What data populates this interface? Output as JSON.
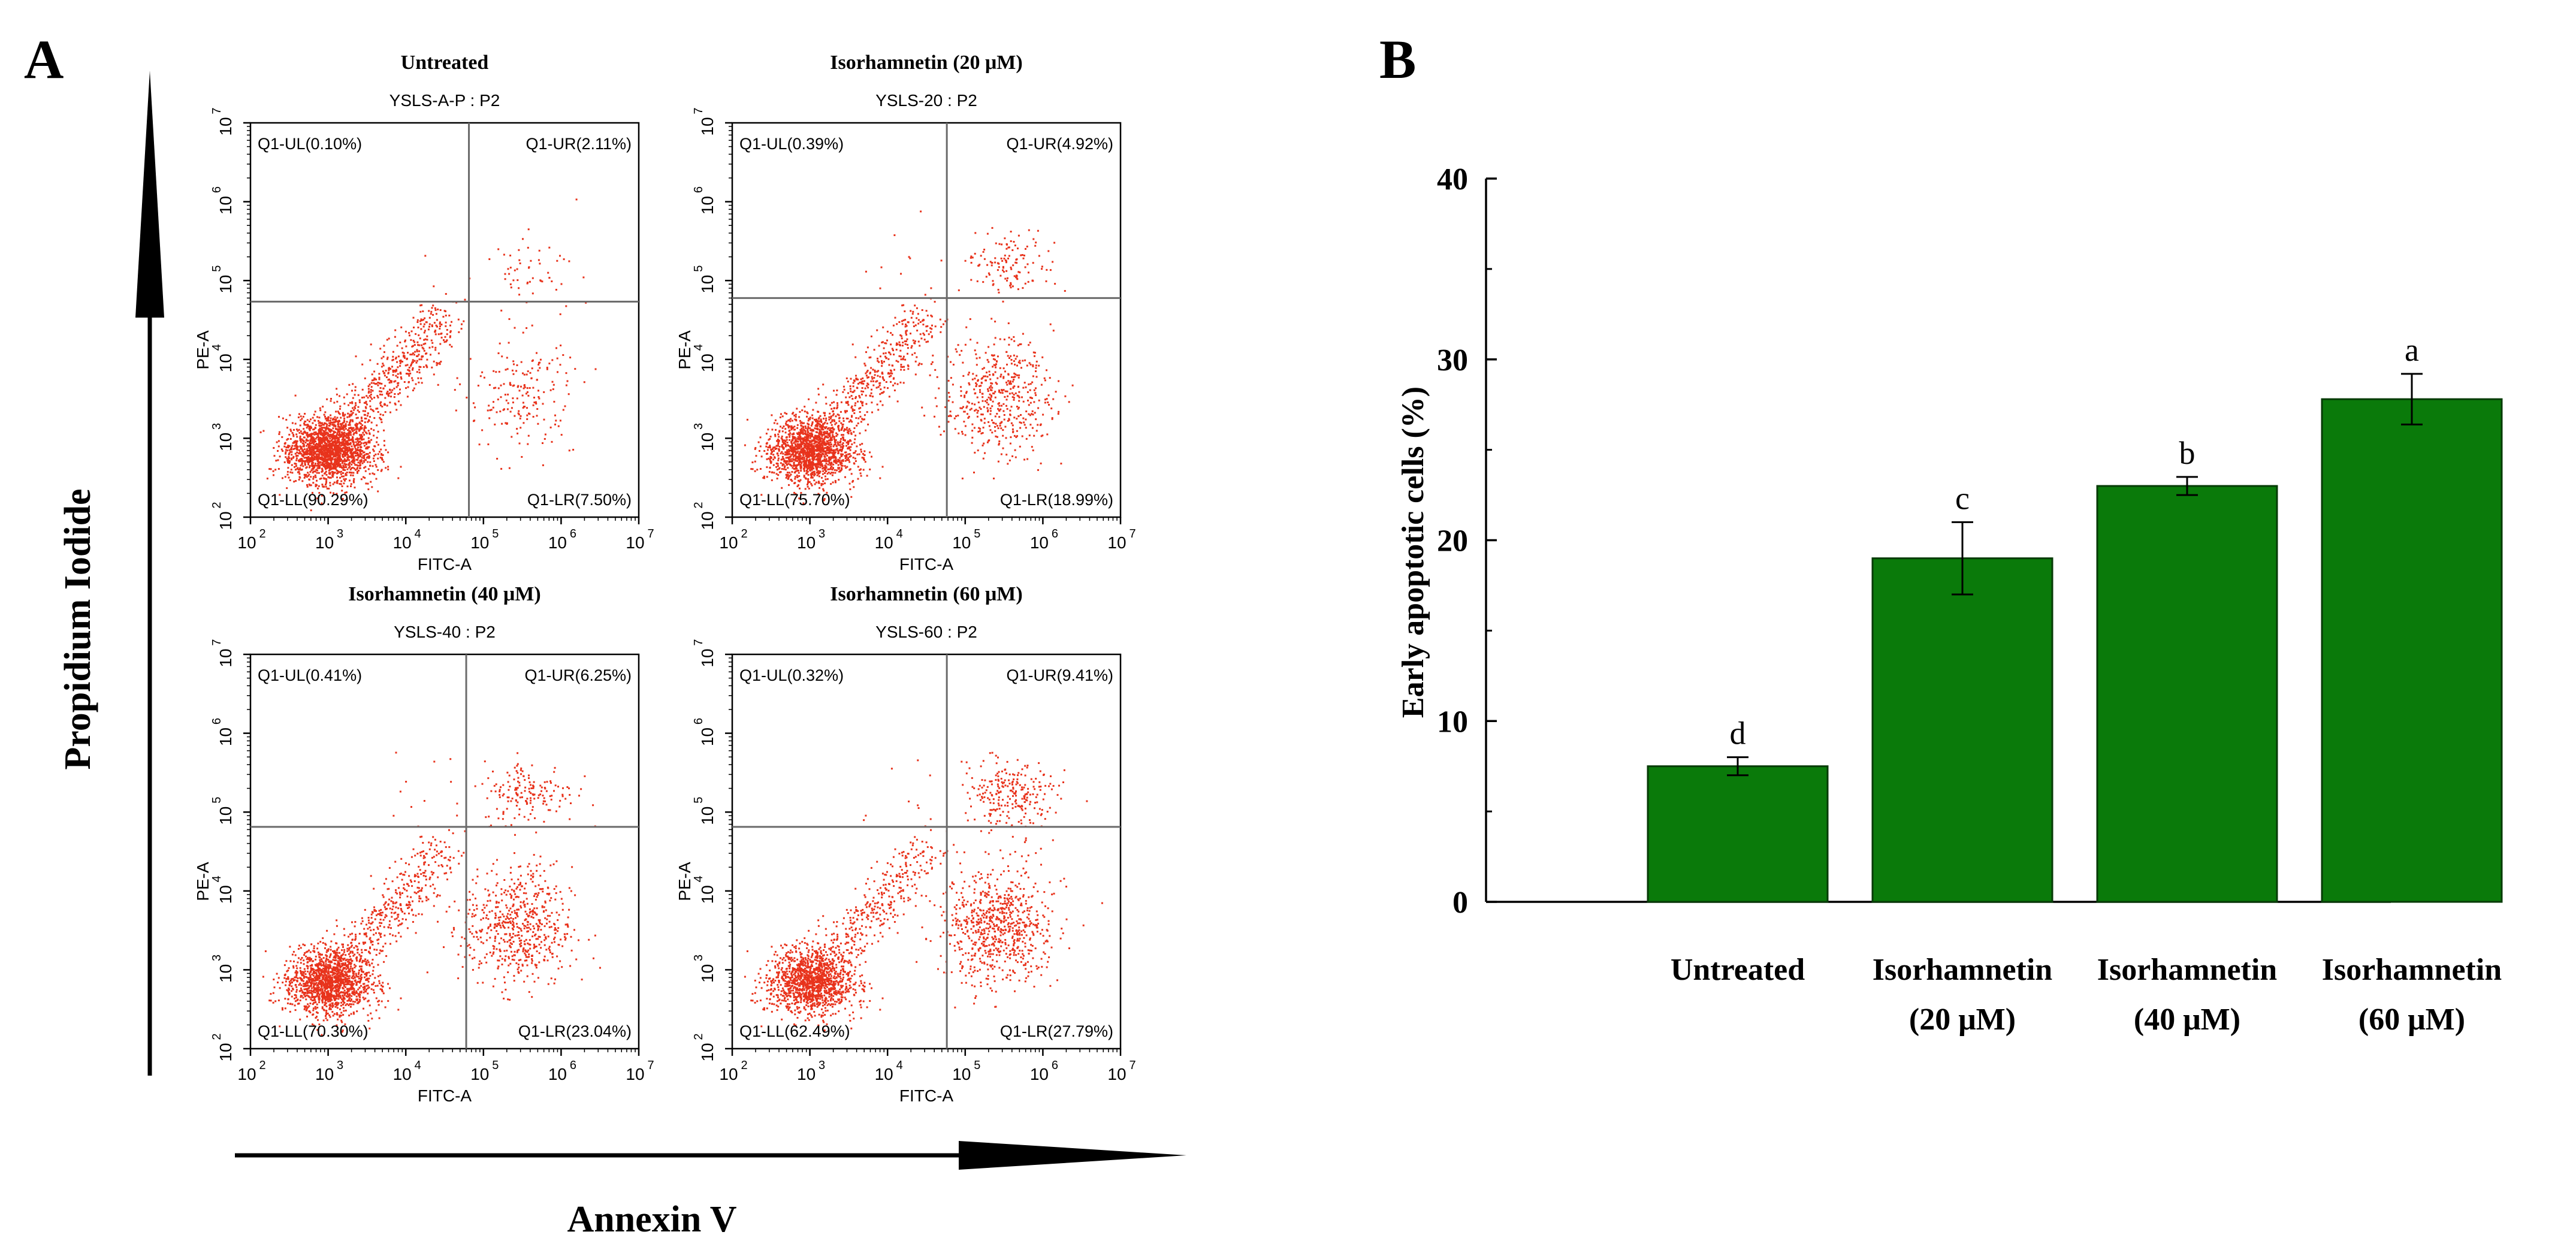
{
  "panel_a": {
    "letter": "A",
    "y_axis_label": "Propidium Iodide",
    "x_axis_label": "Annexin V"
  },
  "panel_b": {
    "letter": "B"
  },
  "colors": {
    "dot": "#e8331c",
    "bar": "#0a7a0a",
    "bar_edge": "#073b07",
    "axis": "#000000",
    "gate": "#6a6a6a"
  },
  "chart_data": [
    {
      "type": "scatter",
      "title": "Untreated",
      "subtitle": "YSLS-A-P : P2",
      "xlabel": "FITC-A",
      "ylabel": "PE-A",
      "x_scale": "log10",
      "y_scale": "log10",
      "xlim": [
        100,
        10000000
      ],
      "ylim": [
        100,
        10000000
      ],
      "x_ticks": [
        "10",
        "10",
        "10",
        "10",
        "10",
        "10"
      ],
      "x_tick_exponents": [
        "2",
        "3",
        "4",
        "5",
        "6",
        "7"
      ],
      "y_ticks": [
        "10",
        "10",
        "10",
        "10",
        "10",
        "10"
      ],
      "y_tick_exponents": [
        "2",
        "3",
        "4",
        "5",
        "6",
        "7"
      ],
      "gate": {
        "x": 65000,
        "y": 54000
      },
      "quadrants": {
        "ul": "Q1-UL(0.10%)",
        "ur": "Q1-UR(2.11%)",
        "ll": "Q1-LL(90.29%)",
        "lr": "Q1-LR(7.50%)"
      },
      "quadrant_percent": {
        "ul": 0.1,
        "ur": 2.11,
        "ll": 90.29,
        "lr": 7.5
      }
    },
    {
      "type": "scatter",
      "title": "Isorhamnetin (20 μM)",
      "subtitle": "YSLS-20 : P2",
      "xlabel": "FITC-A",
      "ylabel": "PE-A",
      "x_scale": "log10",
      "y_scale": "log10",
      "xlim": [
        100,
        10000000
      ],
      "ylim": [
        100,
        10000000
      ],
      "x_ticks": [
        "10",
        "10",
        "10",
        "10",
        "10",
        "10"
      ],
      "x_tick_exponents": [
        "2",
        "3",
        "4",
        "5",
        "6",
        "7"
      ],
      "y_ticks": [
        "10",
        "10",
        "10",
        "10",
        "10",
        "10"
      ],
      "y_tick_exponents": [
        "2",
        "3",
        "4",
        "5",
        "6",
        "7"
      ],
      "gate": {
        "x": 58000,
        "y": 60000
      },
      "quadrants": {
        "ul": "Q1-UL(0.39%)",
        "ur": "Q1-UR(4.92%)",
        "ll": "Q1-LL(75.70%)",
        "lr": "Q1-LR(18.99%)"
      },
      "quadrant_percent": {
        "ul": 0.39,
        "ur": 4.92,
        "ll": 75.7,
        "lr": 18.99
      }
    },
    {
      "type": "scatter",
      "title": "Isorhamnetin (40 μM)",
      "subtitle": "YSLS-40 : P2",
      "xlabel": "FITC-A",
      "ylabel": "PE-A",
      "x_scale": "log10",
      "y_scale": "log10",
      "xlim": [
        100,
        10000000
      ],
      "ylim": [
        100,
        10000000
      ],
      "x_ticks": [
        "10",
        "10",
        "10",
        "10",
        "10",
        "10"
      ],
      "x_tick_exponents": [
        "2",
        "3",
        "4",
        "5",
        "6",
        "7"
      ],
      "y_ticks": [
        "10",
        "10",
        "10",
        "10",
        "10",
        "10"
      ],
      "y_tick_exponents": [
        "2",
        "3",
        "4",
        "5",
        "6",
        "7"
      ],
      "gate": {
        "x": 60000,
        "y": 65000
      },
      "quadrants": {
        "ul": "Q1-UL(0.41%)",
        "ur": "Q1-UR(6.25%)",
        "ll": "Q1-LL(70.30%)",
        "lr": "Q1-LR(23.04%)"
      },
      "quadrant_percent": {
        "ul": 0.41,
        "ur": 6.25,
        "ll": 70.3,
        "lr": 23.04
      }
    },
    {
      "type": "scatter",
      "title": "Isorhamnetin (60 μM)",
      "subtitle": "YSLS-60 : P2",
      "xlabel": "FITC-A",
      "ylabel": "PE-A",
      "x_scale": "log10",
      "y_scale": "log10",
      "xlim": [
        100,
        10000000
      ],
      "ylim": [
        100,
        10000000
      ],
      "x_ticks": [
        "10",
        "10",
        "10",
        "10",
        "10",
        "10"
      ],
      "x_tick_exponents": [
        "2",
        "3",
        "4",
        "5",
        "6",
        "7"
      ],
      "y_ticks": [
        "10",
        "10",
        "10",
        "10",
        "10",
        "10"
      ],
      "y_tick_exponents": [
        "2",
        "3",
        "4",
        "5",
        "6",
        "7"
      ],
      "gate": {
        "x": 58000,
        "y": 65000
      },
      "quadrants": {
        "ul": "Q1-UL(0.32%)",
        "ur": "Q1-UR(9.41%)",
        "ll": "Q1-LL(62.49%)",
        "lr": "Q1-LR(27.79%)"
      },
      "quadrant_percent": {
        "ul": 0.32,
        "ur": 9.41,
        "ll": 62.49,
        "lr": 27.79
      }
    },
    {
      "type": "bar",
      "ylabel": "Early apoptotic cells (%)",
      "xlabel": "",
      "ylim": [
        0,
        40
      ],
      "yticks": [
        0,
        10,
        20,
        30,
        40
      ],
      "ytick_labels": [
        "0",
        "10",
        "20",
        "30",
        "40"
      ],
      "categories": [
        {
          "line1": "Untreated",
          "line2": ""
        },
        {
          "line1": "Isorhamnetin",
          "line2": "(20 μM)"
        },
        {
          "line1": "Isorhamnetin",
          "line2": "(40 μM)"
        },
        {
          "line1": "Isorhamnetin",
          "line2": "(60 μM)"
        }
      ],
      "values": [
        7.5,
        19.0,
        23.0,
        27.8
      ],
      "errors": [
        0.5,
        2.0,
        0.5,
        1.4
      ],
      "significance": [
        "d",
        "c",
        "b",
        "a"
      ]
    }
  ]
}
